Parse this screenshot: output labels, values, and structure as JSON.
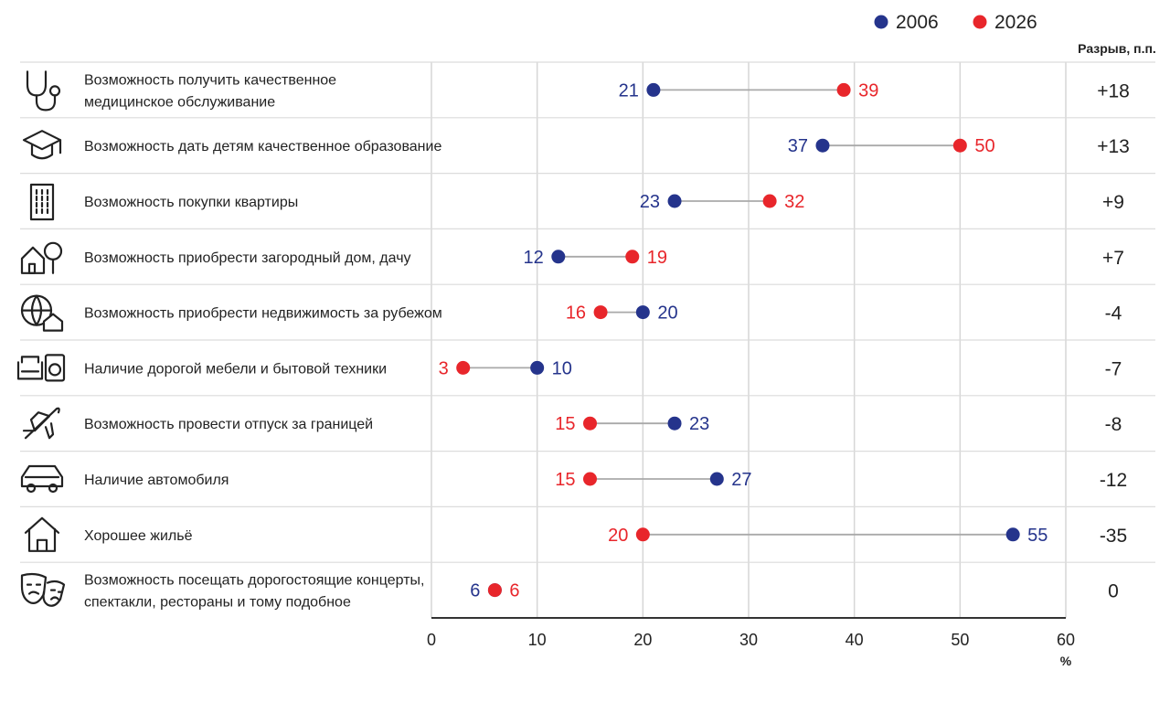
{
  "chart_data": {
    "type": "dumbbell",
    "title": "",
    "xlabel": "%",
    "xlim": [
      0,
      60
    ],
    "x_ticks": [
      0,
      10,
      20,
      30,
      40,
      50,
      60
    ],
    "grid": true,
    "legend_position": "top-right",
    "gap_header": "Разрыв, п.п.",
    "series": [
      {
        "name": "2006",
        "color": "#25348c"
      },
      {
        "name": "2026",
        "color": "#e8262b"
      }
    ],
    "categories": [
      {
        "label": [
          "Возможность получить качественное",
          "медицинское обслуживание"
        ],
        "icon": "stethoscope-icon",
        "v2006": 21,
        "v2026": 39,
        "gap": "+18"
      },
      {
        "label": [
          "Возможность дать детям качественное образование"
        ],
        "icon": "graduation-cap-icon",
        "v2006": 37,
        "v2026": 50,
        "gap": "+13"
      },
      {
        "label": [
          "Возможность покупки квартиры"
        ],
        "icon": "apartment-building-icon",
        "v2006": 23,
        "v2026": 32,
        "gap": "+9"
      },
      {
        "label": [
          "Возможность приобрести загородный дом, дачу"
        ],
        "icon": "country-house-icon",
        "v2006": 12,
        "v2026": 19,
        "gap": "+7"
      },
      {
        "label": [
          "Возможность приобрести недвижимость за рубежом"
        ],
        "icon": "globe-house-icon",
        "v2006": 20,
        "v2026": 16,
        "gap": "-4"
      },
      {
        "label": [
          "Наличие дорогой мебели и бытовой техники"
        ],
        "icon": "sofa-washer-icon",
        "v2006": 10,
        "v2026": 3,
        "gap": "-7"
      },
      {
        "label": [
          "Возможность провести отпуск за границей"
        ],
        "icon": "airplane-icon",
        "v2006": 23,
        "v2026": 15,
        "gap": "-8"
      },
      {
        "label": [
          "Наличие автомобиля"
        ],
        "icon": "car-icon",
        "v2006": 27,
        "v2026": 15,
        "gap": "-12"
      },
      {
        "label": [
          "Хорошее жильё"
        ],
        "icon": "house-icon",
        "v2006": 55,
        "v2026": 20,
        "gap": "-35"
      },
      {
        "label": [
          "Возможность посещать дорогостоящие концерты,",
          "спектакли, рестораны и тому подобное"
        ],
        "icon": "theater-masks-icon",
        "v2006": 6,
        "v2026": 6,
        "gap": "0"
      }
    ]
  }
}
